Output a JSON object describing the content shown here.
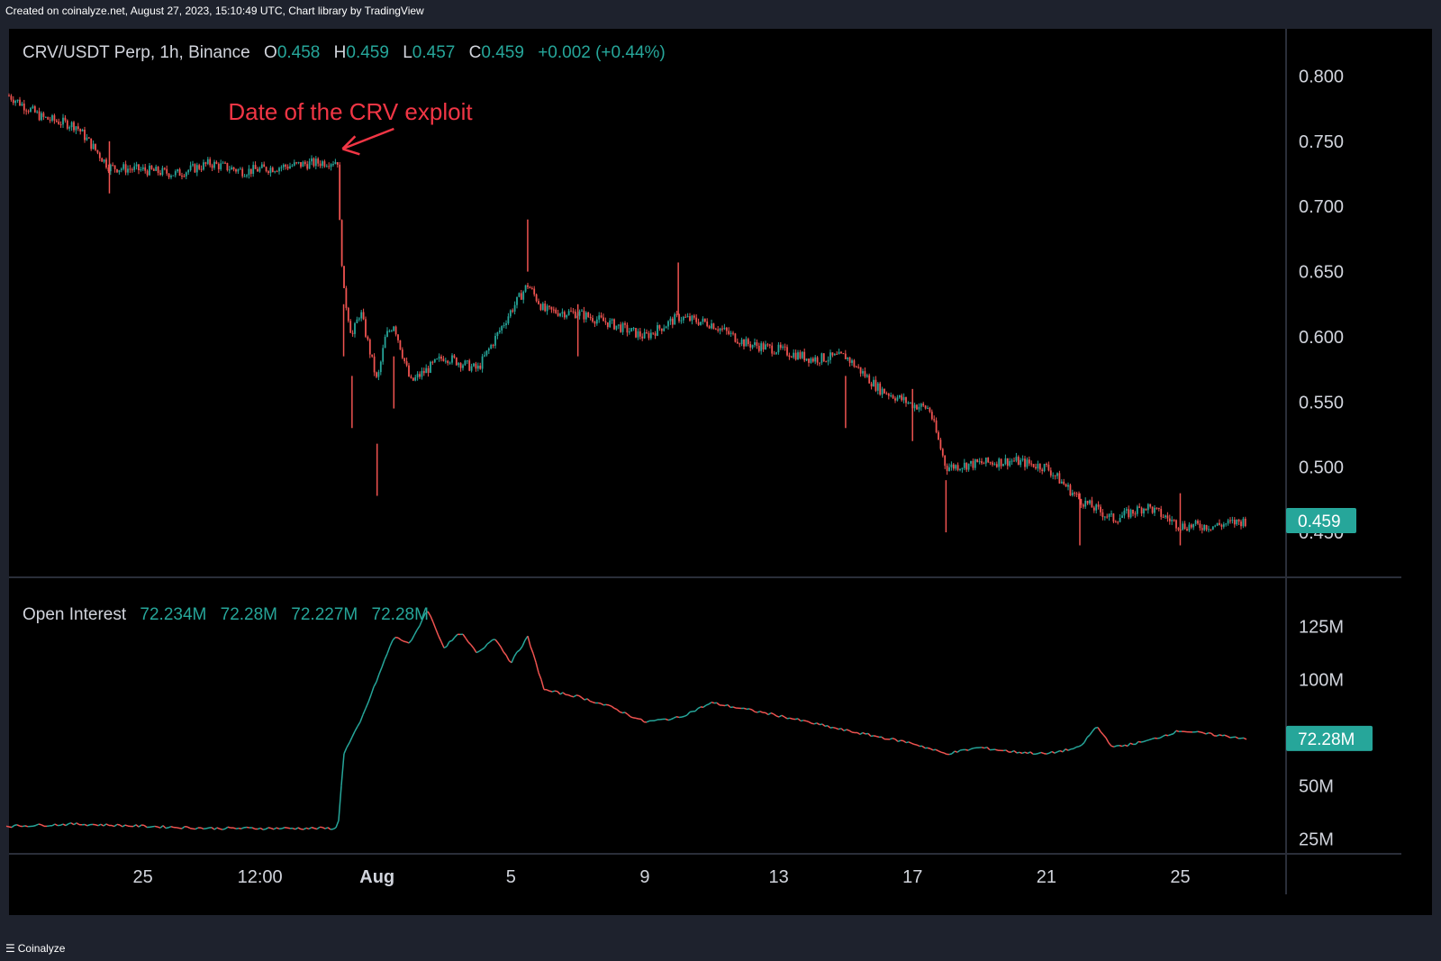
{
  "header": {
    "credit": "Created on coinalyze.net, August 27, 2023, 15:10:49 UTC, Chart library by TradingView"
  },
  "footer": {
    "brand": "Coinalyze",
    "menu_icon": "hamburger-menu-icon"
  },
  "colors": {
    "background": "#000000",
    "up": "#26a69a",
    "down": "#ef5350",
    "annotation": "#f23645",
    "text": "#d1d4dc",
    "grid_separator": "#2a2e39"
  },
  "chart_data": [
    {
      "type": "candlestick",
      "title": "CRV/USDT Perp, 1h, Binance",
      "legend": {
        "o_label": "O",
        "o_value": "0.458",
        "h_label": "H",
        "h_value": "0.459",
        "l_label": "L",
        "l_value": "0.457",
        "c_label": "C",
        "c_value": "0.459",
        "change": "+0.002 (+0.44%)"
      },
      "last_price_label": "0.459",
      "last_price": 0.459,
      "y_ticks": [
        "0.800",
        "0.750",
        "0.700",
        "0.650",
        "0.600",
        "0.550",
        "0.500",
        "0.450"
      ],
      "y_tick_values": [
        0.8,
        0.75,
        0.7,
        0.65,
        0.6,
        0.55,
        0.5,
        0.45
      ],
      "ylim": [
        0.43,
        0.81
      ],
      "annotation": {
        "text": "Date of the CRV exploit",
        "x": "2023-07-30 20:00"
      },
      "x": [
        "2023-07-21",
        "2023-07-22",
        "2023-07-23",
        "2023-07-24",
        "2023-07-25",
        "2023-07-26",
        "2023-07-27",
        "2023-07-28",
        "2023-07-29",
        "2023-07-30",
        "2023-07-30 20:00",
        "2023-07-30 21:00",
        "2023-07-31",
        "2023-07-31 06:00",
        "2023-07-31 12:00",
        "2023-08-01",
        "2023-08-01 06:00",
        "2023-08-01 12:00",
        "2023-08-02",
        "2023-08-03",
        "2023-08-04",
        "2023-08-05",
        "2023-08-05 12:00",
        "2023-08-06",
        "2023-08-07",
        "2023-08-08",
        "2023-08-09",
        "2023-08-10",
        "2023-08-11",
        "2023-08-12",
        "2023-08-13",
        "2023-08-14",
        "2023-08-15",
        "2023-08-16",
        "2023-08-17",
        "2023-08-17 12:00",
        "2023-08-18",
        "2023-08-19",
        "2023-08-20",
        "2023-08-21",
        "2023-08-22",
        "2023-08-23",
        "2023-08-24",
        "2023-08-25",
        "2023-08-26",
        "2023-08-27"
      ],
      "close": [
        0.785,
        0.768,
        0.762,
        0.73,
        0.728,
        0.725,
        0.733,
        0.727,
        0.73,
        0.733,
        0.735,
        0.69,
        0.635,
        0.6,
        0.62,
        0.565,
        0.6,
        0.61,
        0.565,
        0.585,
        0.575,
        0.62,
        0.64,
        0.62,
        0.618,
        0.61,
        0.6,
        0.615,
        0.61,
        0.595,
        0.59,
        0.583,
        0.585,
        0.56,
        0.548,
        0.545,
        0.5,
        0.503,
        0.505,
        0.5,
        0.475,
        0.46,
        0.47,
        0.455,
        0.455,
        0.459
      ],
      "wick_highs": [
        {
          "x": "2023-08-05 12:00",
          "high": 0.69
        },
        {
          "x": "2023-08-10",
          "high": 0.657
        }
      ],
      "wick_lows": [
        {
          "x": "2023-07-24",
          "low": 0.71
        },
        {
          "x": "2023-07-31",
          "low": 0.585
        },
        {
          "x": "2023-07-31 06:00",
          "low": 0.53
        },
        {
          "x": "2023-08-01",
          "low": 0.478
        },
        {
          "x": "2023-08-01 12:00",
          "low": 0.545
        },
        {
          "x": "2023-08-07",
          "low": 0.585
        },
        {
          "x": "2023-08-15",
          "low": 0.53
        },
        {
          "x": "2023-08-17",
          "low": 0.52
        },
        {
          "x": "2023-08-18",
          "low": 0.45
        },
        {
          "x": "2023-08-22",
          "low": 0.44
        },
        {
          "x": "2023-08-25",
          "low": 0.44
        }
      ]
    },
    {
      "type": "line",
      "title": "Open Interest",
      "legend_values": [
        "72.234M",
        "72.28M",
        "72.227M",
        "72.28M"
      ],
      "last_value_label": "72.28M",
      "y_ticks": [
        "125M",
        "100M",
        "50M",
        "25M"
      ],
      "y_tick_values": [
        125,
        100,
        50,
        25
      ],
      "ylim": [
        18,
        140
      ],
      "y_unit": "M",
      "x": [
        "2023-07-21",
        "2023-07-23",
        "2023-07-25",
        "2023-07-27",
        "2023-07-29",
        "2023-07-30 20:00",
        "2023-07-31",
        "2023-07-31 12:00",
        "2023-08-01",
        "2023-08-01 12:00",
        "2023-08-02",
        "2023-08-02 12:00",
        "2023-08-03",
        "2023-08-03 12:00",
        "2023-08-04",
        "2023-08-04 12:00",
        "2023-08-05",
        "2023-08-05 12:00",
        "2023-08-06",
        "2023-08-07",
        "2023-08-08",
        "2023-08-09",
        "2023-08-10",
        "2023-08-11",
        "2023-08-13",
        "2023-08-15",
        "2023-08-17",
        "2023-08-18",
        "2023-08-19",
        "2023-08-20",
        "2023-08-21",
        "2023-08-22",
        "2023-08-22 12:00",
        "2023-08-23",
        "2023-08-24",
        "2023-08-25",
        "2023-08-26",
        "2023-08-27"
      ],
      "values": [
        31,
        32,
        31,
        30,
        30,
        30,
        65,
        80,
        100,
        120,
        117,
        133,
        115,
        122,
        112,
        120,
        108,
        120,
        95,
        92,
        87,
        80,
        82,
        89,
        83,
        76,
        70,
        65,
        68,
        66,
        65,
        68,
        78,
        68,
        71,
        76,
        74,
        72.28
      ]
    }
  ],
  "x_axis": {
    "labels": [
      "25",
      "12:00",
      "Aug",
      "5",
      "9",
      "13",
      "17",
      "21",
      "25"
    ],
    "positions": [
      "2023-07-25",
      "2023-07-28 12:00",
      "2023-08-01",
      "2023-08-05",
      "2023-08-09",
      "2023-08-13",
      "2023-08-17",
      "2023-08-21",
      "2023-08-25"
    ]
  }
}
